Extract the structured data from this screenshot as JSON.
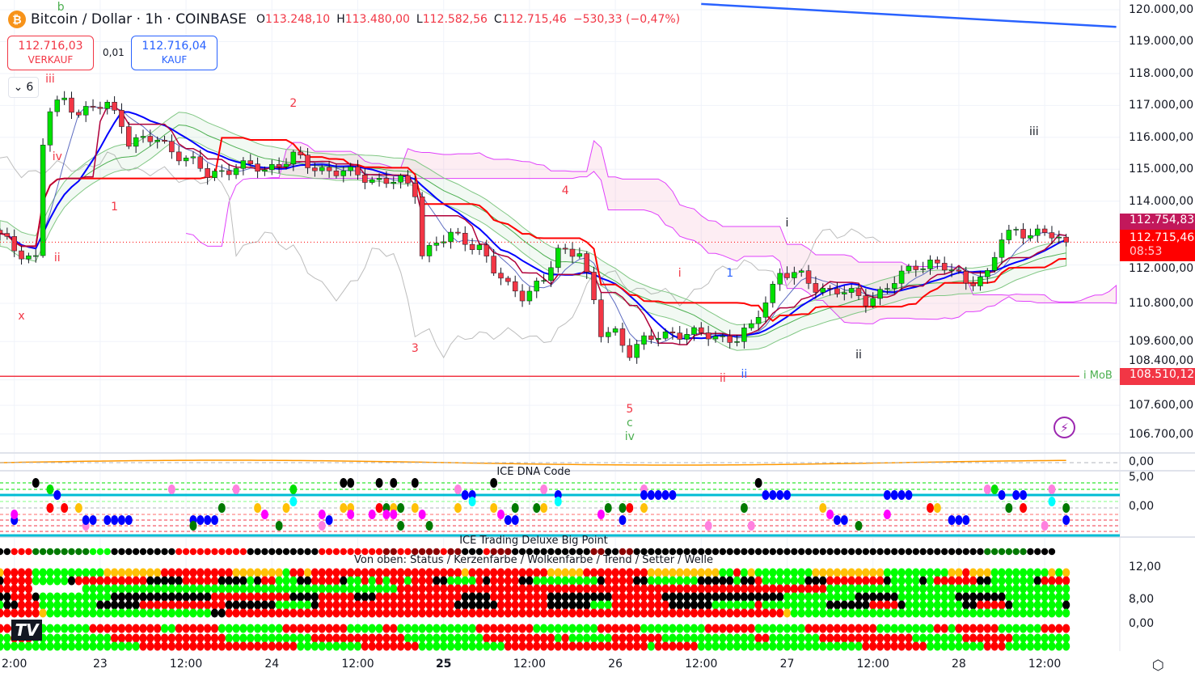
{
  "header": {
    "symbol_icon": "bitcoin-icon",
    "title": "Bitcoin / Dollar · 1h · COINBASE",
    "ohlc": [
      {
        "k": "O",
        "v": "113.248,10"
      },
      {
        "k": "H",
        "v": "113.480,00"
      },
      {
        "k": "L",
        "v": "112.582,56"
      },
      {
        "k": "C",
        "v": "112.715,46"
      }
    ],
    "change": "−530,33 (−0,47%)"
  },
  "trade": {
    "sell_price": "112.716,03",
    "sell_label": "VERKAUF",
    "spread": "0,01",
    "buy_price": "112.716,04",
    "buy_label": "KAUF"
  },
  "collapse": {
    "count": "6"
  },
  "colors": {
    "up": "#00e000",
    "down": "#f23645",
    "accent": "#2962ff",
    "cyan": "#00bcd4"
  },
  "price_axis": [
    "120.000,00",
    "119.000,00",
    "118.000,00",
    "117.000,00",
    "116.000,00",
    "115.000,00",
    "114.000,00",
    "112.000,00",
    "110.800,00",
    "109.600,00",
    "108.400,00",
    "107.600,00",
    "106.700,00"
  ],
  "price_axis_values": [
    120000,
    119000,
    118000,
    117000,
    116000,
    115000,
    114000,
    112000,
    110800,
    109600,
    108400,
    107600,
    106700
  ],
  "time_axis": [
    {
      "t": "2:00",
      "h": 2
    },
    {
      "t": "23",
      "h": 14
    },
    {
      "t": "12:00",
      "h": 26
    },
    {
      "t": "24",
      "h": 38
    },
    {
      "t": "12:00",
      "h": 50
    },
    {
      "t": "25",
      "h": 62,
      "bold": true
    },
    {
      "t": "12:00",
      "h": 74
    },
    {
      "t": "26",
      "h": 86
    },
    {
      "t": "12:00",
      "h": 98
    },
    {
      "t": "27",
      "h": 110
    },
    {
      "t": "12:00",
      "h": 122
    },
    {
      "t": "28",
      "h": 134
    },
    {
      "t": "12:00",
      "h": 146
    }
  ],
  "tags": {
    "ma_price": "112.754,83",
    "last_price": "112.715,46",
    "countdown": "08:53",
    "mob_price": "108.510,12",
    "mob_label": "i MoB"
  },
  "chart_data": {
    "type": "candlestick",
    "interval": "1h",
    "start": "22 10:00",
    "key_closes": [
      [
        "22 10:00",
        112900
      ],
      [
        "22 12:00",
        112500
      ],
      [
        "22 15:00",
        112200
      ],
      [
        "22 16:00",
        115800
      ],
      [
        "22 17:00",
        116800
      ],
      [
        "22 19:00",
        117200
      ],
      [
        "22 21:00",
        116800
      ],
      [
        "23 01:00",
        117000
      ],
      [
        "23 03:00",
        116500
      ],
      [
        "23 04:00",
        115900
      ],
      [
        "23 08:00",
        115900
      ],
      [
        "23 13:00",
        115200
      ],
      [
        "23 15:00",
        114800
      ],
      [
        "23 19:00",
        115100
      ],
      [
        "23 23:00",
        115000
      ],
      [
        "24 03:00",
        115400
      ],
      [
        "24 05:00",
        115100
      ],
      [
        "24 10:00",
        114900
      ],
      [
        "24 14:00",
        114700
      ],
      [
        "24 18:00",
        114600
      ],
      [
        "24 20:00",
        114300
      ],
      [
        "24 21:00",
        112400
      ],
      [
        "24 23:00",
        112700
      ],
      [
        "25 01:00",
        112900
      ],
      [
        "25 05:00",
        112600
      ],
      [
        "25 07:00",
        111800
      ],
      [
        "25 09:00",
        111300
      ],
      [
        "25 11:00",
        111100
      ],
      [
        "25 14:00",
        111500
      ],
      [
        "25 16:00",
        112400
      ],
      [
        "25 19:00",
        112500
      ],
      [
        "25 21:00",
        110800
      ],
      [
        "25 22:00",
        109800
      ],
      [
        "26 00:00",
        109900
      ],
      [
        "26 02:00",
        109300
      ],
      [
        "26 04:00",
        109600
      ],
      [
        "26 08:00",
        109900
      ],
      [
        "26 12:00",
        109800
      ],
      [
        "26 17:00",
        109700
      ],
      [
        "26 19:00",
        110000
      ],
      [
        "26 21:00",
        110900
      ],
      [
        "26 23:00",
        111800
      ],
      [
        "27 02:00",
        111600
      ],
      [
        "27 04:00",
        111300
      ],
      [
        "27 07:00",
        111200
      ],
      [
        "27 11:00",
        110900
      ],
      [
        "27 14:00",
        111300
      ],
      [
        "27 18:00",
        112000
      ],
      [
        "27 20:00",
        112100
      ],
      [
        "27 22:00",
        111900
      ],
      [
        "28 01:00",
        111500
      ],
      [
        "28 04:00",
        111700
      ],
      [
        "28 06:00",
        112800
      ],
      [
        "28 08:00",
        113100
      ],
      [
        "28 13:00",
        112900
      ],
      [
        "28 15:00",
        112715
      ]
    ],
    "trendline": [
      [
        "26 12:00",
        120180
      ],
      [
        "28 22:00",
        119460
      ]
    ],
    "mob_level": 108510,
    "last": 112715,
    "wave_labels": [
      {
        "t": "b",
        "at": "22 18:30",
        "p": 120000,
        "c": "#4caf50"
      },
      {
        "t": "iii",
        "at": "22 17:00",
        "p": 117845,
        "c": "#f23645"
      },
      {
        "t": "iv",
        "at": "22 18:00",
        "p": 115412,
        "c": "#f23645"
      },
      {
        "t": "ii",
        "at": "22 18:00",
        "p": 112243,
        "c": "#f23645"
      },
      {
        "t": "x",
        "at": "22 13:00",
        "p": 110418,
        "c": "#f23645"
      },
      {
        "t": "1",
        "at": "23 02:00",
        "p": 113840,
        "c": "#f23645"
      },
      {
        "t": "2",
        "at": "24 03:00",
        "p": 117085,
        "c": "#f23645"
      },
      {
        "t": "3",
        "at": "24 20:00",
        "p": 109404,
        "c": "#f23645"
      },
      {
        "t": "4",
        "at": "25 17:00",
        "p": 114347,
        "c": "#f23645"
      },
      {
        "t": "5",
        "at": "26 02:00",
        "p": 107503,
        "c": "#f23645"
      },
      {
        "t": "c",
        "at": "26 02:00",
        "p": 107072,
        "c": "#4caf50"
      },
      {
        "t": "iv",
        "at": "26 02:00",
        "p": 106692,
        "c": "#4caf50"
      },
      {
        "t": "i",
        "at": "26 09:00",
        "p": 111762,
        "c": "#f23645"
      },
      {
        "t": "1",
        "at": "26 16:00",
        "p": 111762,
        "c": "#2962ff"
      },
      {
        "t": "ii",
        "at": "26 15:00",
        "p": 108466,
        "c": "#f23645"
      },
      {
        "t": "ii",
        "at": "26 18:00",
        "p": 108593,
        "c": "#2962ff"
      },
      {
        "t": "i",
        "at": "27 00:00",
        "p": 113333,
        "c": "#131722"
      },
      {
        "t": "ii",
        "at": "27 10:00",
        "p": 109201,
        "c": "#131722"
      },
      {
        "t": "iii",
        "at": "28 10:30",
        "p": 116198,
        "c": "#131722"
      }
    ]
  },
  "panels": {
    "osc_axis": "0,00",
    "dna": {
      "title": "ICE DNA Code",
      "axis": [
        "5,00",
        "0,00"
      ],
      "dots": {
        "K": [
          [
            0,
            [
              5,
              48,
              49,
              53,
              55,
              58,
              69,
              106
            ]
          ]
        ],
        "P": [
          [
            1,
            [
              24,
              33,
              64,
              76,
              90,
              138,
              147
            ]
          ],
          [
            7,
            [
              12,
              45,
              99,
              105,
              146
            ]
          ]
        ],
        "g": [
          [
            1,
            [
              7,
              41,
              139
            ]
          ]
        ],
        "B": [
          [
            2,
            [
              8,
              65,
              66,
              78,
              90,
              91,
              92,
              93,
              94,
              107,
              108,
              109,
              110,
              124,
              125,
              126,
              127,
              140,
              142,
              143
            ]
          ],
          [
            6,
            [
              2,
              12,
              13,
              15,
              16,
              17,
              18,
              27,
              28,
              29,
              30,
              46,
              71,
              72,
              87,
              117,
              118,
              133,
              134,
              135,
              149
            ]
          ]
        ],
        "C": [
          [
            3,
            [
              41,
              66,
              78,
              147
            ]
          ]
        ],
        "Y": [
          [
            4,
            [
              11,
              36,
              40,
              48,
              49,
              55,
              58,
              64,
              69,
              76,
              90,
              115,
              131
            ]
          ]
        ],
        "D": [
          [
            4,
            [
              31,
              54,
              56,
              72,
              75,
              85,
              87,
              104,
              141,
              149
            ]
          ],
          [
            7,
            [
              27,
              39,
              56,
              60,
              120
            ]
          ]
        ],
        "R": [
          [
            4,
            [
              7,
              9,
              53,
              88,
              130,
              143
            ]
          ]
        ],
        "M": [
          [
            5,
            [
              2,
              37,
              45,
              49,
              52,
              54,
              55,
              59,
              70,
              84,
              116,
              124
            ]
          ]
        ]
      }
    },
    "bigpoint": {
      "title": "ICE Trading Deluxe Big Point",
      "runs": "K2R3D8G3K9R10K10R9M2R2M4R1M2K3R1M3K11M2K2M2K49D6K4"
    },
    "matrix": {
      "title": "Von oben: Status / Kerzenfarbe / Wolkenfarbe / Trend / Setter / Welle",
      "axis": [
        "12,00",
        "8,00",
        "0,00"
      ],
      "rows": [
        "Y1R4G10Y8R10Y7G1R2Y1R21Y1R11Y5R9Y10G2R1G1Y1G8Y10G9Y2R1Y3G8Y1G1Y1",
        "K1R4G5K1R10K5R5K4G1K1R2G3K2R4K1G2R1G1R1G1R2G1R3K2G4R1K1R4K2G9K1R4K2G7K5G1K2R1G6K3R8K1G4K1G1R6K2G6K1R4",
        "R5W7G44R23R37G35",
        "K2R3K1G10K14R11K4R5K3R12K4R8K9R7K17G10K6G8K7G9K1",
        "G1K2R3G8K6R12K7G5K1R19K6R7K6G3R8K6G6R1G9K6R4K1G8K2R4K1G7K2",
        "R6Y1G23K2R47R31Y1G39",
        "R5G8R10G2R6G9R9G5R2G11R8G9R6G9R7G7R10G8R2G1R6G6R5",
        "G2R3G11R16G12R13G11R10G1R1G6R7G13R2G7R13G7R7G9",
        "G20R22G9R8G12R8R12G1R6G23R9G8R3G10"
      ]
    }
  },
  "icons": {
    "lightning": "lightning-circle-icon",
    "settings": "settings-hex-icon",
    "logo": "tradingview-logo"
  }
}
